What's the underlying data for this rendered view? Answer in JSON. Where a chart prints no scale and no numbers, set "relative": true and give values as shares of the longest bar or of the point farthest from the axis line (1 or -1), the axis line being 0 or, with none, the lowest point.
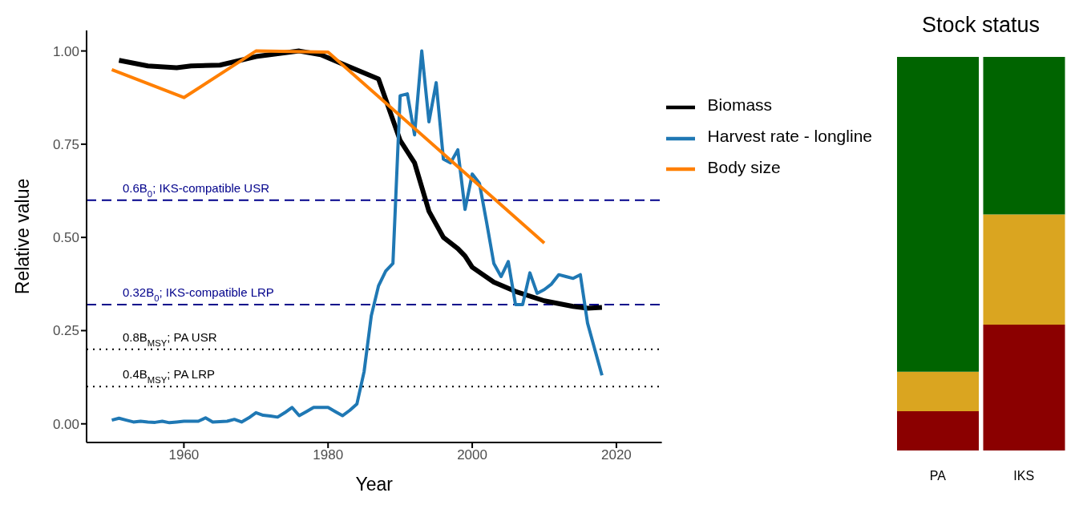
{
  "chart_data": [
    {
      "type": "line",
      "xlabel": "Year",
      "ylabel": "Relative value",
      "xlim": [
        1946.5,
        2026.3
      ],
      "xticks": [
        1960,
        1980,
        2000,
        2020
      ],
      "ylim": [
        -0.05,
        1.055
      ],
      "yticks": [
        {
          "value": 0,
          "label": "0.00"
        },
        {
          "value": 0.25,
          "label": "0.25"
        },
        {
          "value": 0.5,
          "label": "0.50"
        },
        {
          "value": 0.75,
          "label": "0.75"
        },
        {
          "value": 1,
          "label": "1.00"
        }
      ],
      "legend": "top right",
      "series": [
        {
          "name": "Biomass",
          "color": "#000000",
          "x": [
            1951,
            1955,
            1959,
            1961,
            1965,
            1970,
            1976,
            1979,
            1982,
            1987,
            1988,
            1990,
            1992,
            1994,
            1996,
            1998,
            1999,
            2000,
            2003,
            2006,
            2010,
            2014,
            2016,
            2018
          ],
          "values": [
            0.975,
            0.96,
            0.955,
            0.96,
            0.962,
            0.985,
            1.0,
            0.99,
            0.965,
            0.925,
            0.87,
            0.76,
            0.7,
            0.57,
            0.5,
            0.47,
            0.45,
            0.42,
            0.38,
            0.355,
            0.33,
            0.315,
            0.31,
            0.312
          ]
        },
        {
          "name": "Harvest rate - longline",
          "color": "#1f78b4",
          "x": [
            1950,
            1951,
            1952,
            1953,
            1954,
            1955,
            1956,
            1957,
            1958,
            1959,
            1960,
            1961,
            1962,
            1963,
            1964,
            1965,
            1966,
            1967,
            1968,
            1969,
            1970,
            1971,
            1972,
            1973,
            1974,
            1975,
            1976,
            1977,
            1978,
            1979,
            1980,
            1981,
            1982,
            1983,
            1984,
            1985,
            1986,
            1987,
            1988,
            1989,
            1990,
            1991,
            1992,
            1993,
            1994,
            1995,
            1996,
            1997,
            1998,
            1999,
            2000,
            2001,
            2002,
            2003,
            2004,
            2005,
            2006,
            2007,
            2008,
            2009,
            2010,
            2011,
            2012,
            2013,
            2014,
            2015,
            2016,
            2017,
            2018
          ],
          "values": [
            0.01,
            0.015,
            0.01,
            0.005,
            0.007,
            0.005,
            0.004,
            0.007,
            0.003,
            0.005,
            0.007,
            0.007,
            0.007,
            0.016,
            0.005,
            0.006,
            0.007,
            0.012,
            0.005,
            0.016,
            0.03,
            0.023,
            0.021,
            0.018,
            0.03,
            0.044,
            0.022,
            0.033,
            0.044,
            0.044,
            0.044,
            0.033,
            0.022,
            0.036,
            0.053,
            0.14,
            0.29,
            0.37,
            0.41,
            0.43,
            0.88,
            0.885,
            0.775,
            1.0,
            0.81,
            0.915,
            0.71,
            0.7,
            0.735,
            0.575,
            0.67,
            0.645,
            0.54,
            0.43,
            0.395,
            0.435,
            0.32,
            0.32,
            0.405,
            0.35,
            0.36,
            0.375,
            0.4,
            0.395,
            0.39,
            0.4,
            0.27,
            0.2,
            0.13
          ]
        },
        {
          "name": "Body size",
          "color": "#ff7f00",
          "x": [
            1950,
            1960,
            1970,
            1980,
            2010
          ],
          "values": [
            0.95,
            0.875,
            1.0,
            0.997,
            0.485
          ]
        }
      ],
      "ref_lines": [
        {
          "axis": "y",
          "value": 0.6,
          "label": "0.6B$_{0}$; IKS-compatible USR",
          "color": "#00008b",
          "line_style": "dashed"
        },
        {
          "axis": "y",
          "value": 0.32,
          "label": "0.32B$_{0}$; IKS-compatible LRP",
          "color": "#00008b",
          "line_style": "dashed"
        },
        {
          "axis": "y",
          "value": 0.2,
          "label": "0.8B$_{MSY}$; PA USR",
          "color": "#000000",
          "line_style": "dotted"
        },
        {
          "axis": "y",
          "value": 0.1,
          "label": "0.4B$_{MSY}$; PA LRP",
          "color": "#000000",
          "line_style": "dotted"
        }
      ]
    },
    {
      "type": "bar",
      "title": "Stock status",
      "categories": [
        "PA",
        "IKS"
      ],
      "stacked": true,
      "relative": true,
      "tick_labels": "x",
      "series": [
        {
          "color": "#8b0000",
          "values": [
            0.1,
            0.32
          ]
        },
        {
          "color": "#daa520",
          "values": [
            0.1,
            0.28
          ]
        },
        {
          "color": "#006400",
          "values": [
            0.8,
            0.4
          ]
        }
      ]
    }
  ]
}
